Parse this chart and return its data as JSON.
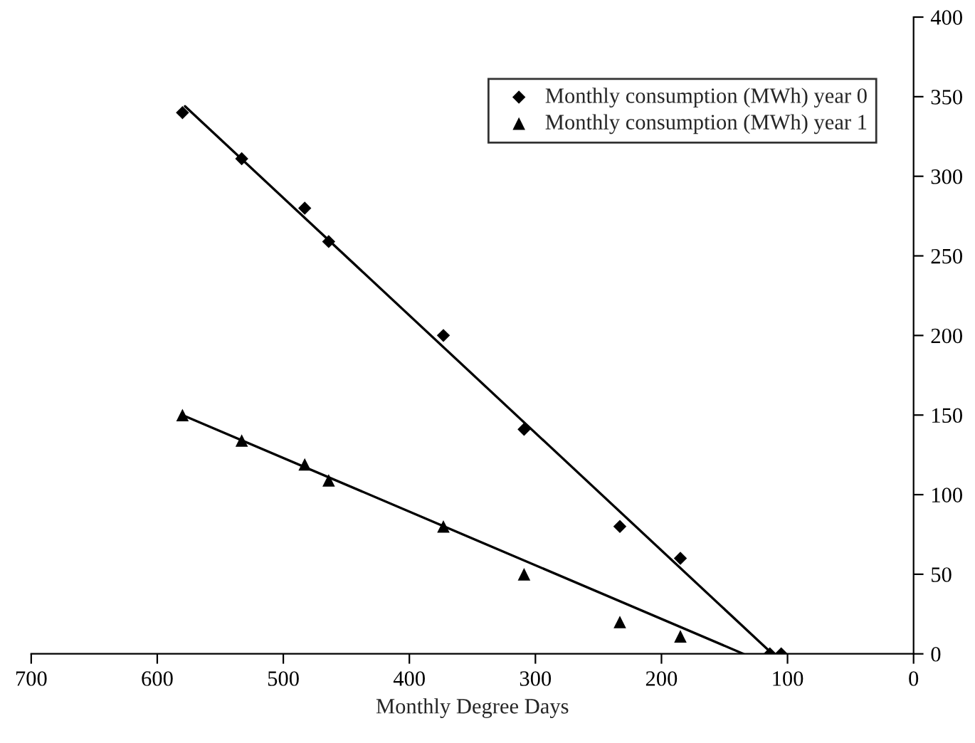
{
  "chart_data": {
    "type": "scatter",
    "xlabel": "Monthly Degree Days",
    "xlim": [
      700,
      0
    ],
    "xticks": [
      700,
      600,
      500,
      400,
      300,
      200,
      100,
      0
    ],
    "ylim": [
      0,
      400
    ],
    "yticks": [
      0,
      50,
      100,
      150,
      200,
      250,
      300,
      350,
      400
    ],
    "grid": false,
    "legend": "top right",
    "series": [
      {
        "name": "Monthly consumption (MWh) year 0",
        "marker": "diamond",
        "color": "#000000",
        "x": [
          580,
          533,
          483,
          464,
          373,
          309,
          233,
          185,
          114,
          105
        ],
        "values": [
          340,
          311,
          280,
          259,
          200,
          141,
          80,
          60,
          0,
          0
        ]
      },
      {
        "name": "Monthly consumption (MWh) year 1",
        "marker": "triangle",
        "color": "#000000",
        "x": [
          580,
          533,
          483,
          464,
          373,
          309,
          233,
          185
        ],
        "values": [
          150,
          134,
          119,
          109,
          80,
          50,
          20,
          11
        ]
      },
      {
        "type": "line",
        "marker": "none",
        "color": "#000000",
        "x": [
          578,
          112
        ],
        "values": [
          344,
          0
        ]
      },
      {
        "type": "line",
        "marker": "none",
        "color": "#000000",
        "x": [
          580,
          135
        ],
        "values": [
          150,
          0
        ]
      }
    ]
  }
}
